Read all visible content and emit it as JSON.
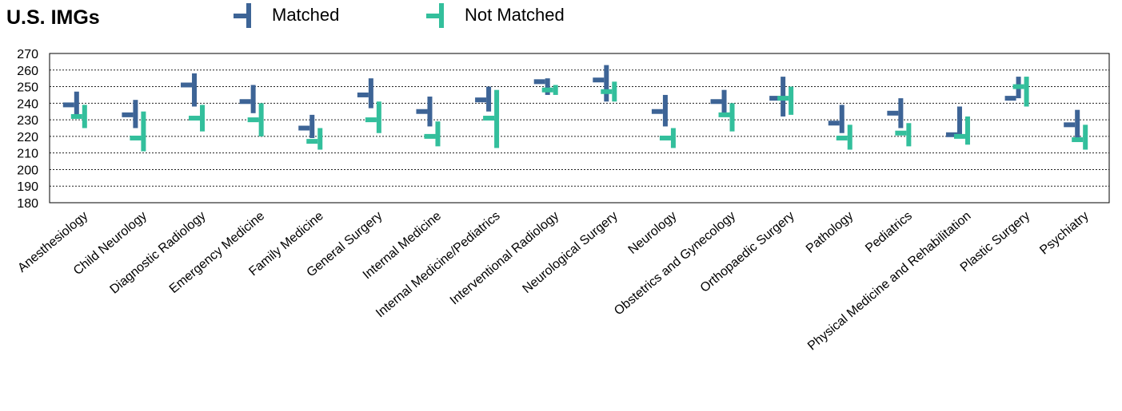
{
  "title": "U.S. IMGs",
  "colors": {
    "matched": "#3d6496",
    "not_matched": "#33bf9c"
  },
  "chart_data": {
    "type": "hi-lo-mean",
    "ylim": [
      180,
      270
    ],
    "yticks": [
      180,
      190,
      200,
      210,
      220,
      230,
      240,
      250,
      260,
      270
    ],
    "grid": true,
    "legend": "top",
    "categories": [
      "Anesthesiology",
      "Child Neurology",
      "Diagnostic Radiology",
      "Emergency Medicine",
      "Family Medicine",
      "General Surgery",
      "Internal Medicine",
      "Internal Medicine/Pediatrics",
      "Interventional Radiology",
      "Neurological Surgery",
      "Neurology",
      "Obstetrics and Gynecology",
      "Orthopaedic Surgery",
      "Pathology",
      "Pediatrics",
      "Physical Medicine and Rehabilitation",
      "Plastic Surgery",
      "Psychiatry"
    ],
    "series": [
      {
        "name": "Matched",
        "high": [
          247,
          242,
          258,
          251,
          233,
          255,
          244,
          250,
          255,
          263,
          245,
          248,
          256,
          239,
          243,
          238,
          256,
          236
        ],
        "low": [
          231,
          225,
          238,
          234,
          219,
          237,
          226,
          235,
          245,
          241,
          226,
          234,
          232,
          222,
          225,
          220,
          243,
          219
        ],
        "mean": [
          239,
          233,
          251,
          241,
          225,
          245,
          235,
          242,
          253,
          254,
          235,
          241,
          243,
          228,
          234,
          221,
          243,
          227
        ]
      },
      {
        "name": "Not Matched",
        "high": [
          239,
          235,
          239,
          240,
          225,
          241,
          229,
          248,
          251,
          253,
          225,
          240,
          250,
          227,
          228,
          232,
          256,
          227
        ],
        "low": [
          225,
          211,
          223,
          220,
          212,
          222,
          214,
          213,
          245,
          241,
          213,
          223,
          233,
          212,
          214,
          215,
          238,
          212
        ],
        "mean": [
          232,
          219,
          231,
          230,
          217,
          230,
          220,
          231,
          248,
          247,
          219,
          233,
          243,
          219,
          222,
          220,
          250,
          218
        ]
      }
    ]
  }
}
